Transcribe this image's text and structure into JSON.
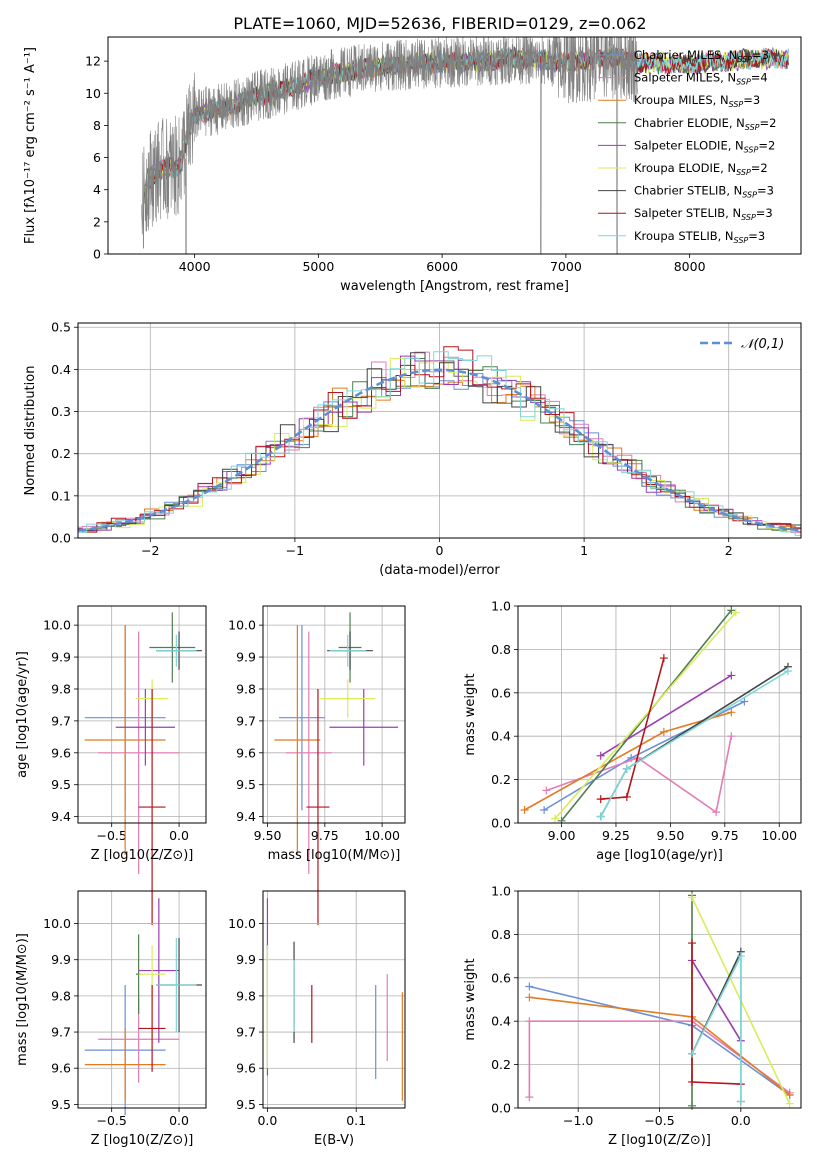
{
  "figure": {
    "title": "PLATE=1060, MJD=52636, FIBERID=0129, z=0.062",
    "colors": {
      "Chabrier MILES": "#6a8fd8",
      "Salpeter MILES": "#e27db6",
      "Kroupa MILES": "#e37b22",
      "Chabrier ELODIE": "#4f7f4f",
      "Salpeter ELODIE": "#9b3db4",
      "Kroupa ELODIE": "#d8ec5c",
      "Chabrier STELIB": "#444444",
      "Salpeter STELIB": "#b5141c",
      "Kroupa STELIB": "#7fd7d9",
      "data": "#808080",
      "normal_curve": "#5b8fd6",
      "grid": "#b0b0b0"
    }
  },
  "chart_data": [
    {
      "id": "spectrum",
      "type": "line",
      "xlabel": "wavelength [Angstrom, rest frame]",
      "ylabel": "Flux [fλ10⁻¹⁷ erg cm⁻² s⁻¹ A⁻¹]",
      "xlim": [
        3300,
        8900
      ],
      "ylim": [
        0,
        13.5
      ],
      "xticks": [
        4000,
        5000,
        6000,
        7000,
        8000
      ],
      "yticks": [
        0,
        2,
        4,
        6,
        8,
        10,
        12
      ],
      "grid": false,
      "legend_position": "right",
      "legend": [
        {
          "label": "Chabrier MILES, N",
          "sub": "SSP",
          "count": "=3"
        },
        {
          "label": "Salpeter MILES, N",
          "sub": "SSP",
          "count": "=4"
        },
        {
          "label": "Kroupa MILES, N",
          "sub": "SSP",
          "count": "=3"
        },
        {
          "label": "Chabrier ELODIE, N",
          "sub": "SSP",
          "count": "=2"
        },
        {
          "label": "Salpeter ELODIE, N",
          "sub": "SSP",
          "count": "=2"
        },
        {
          "label": "Kroupa ELODIE, N",
          "sub": "SSP",
          "count": "=2"
        },
        {
          "label": "Chabrier STELIB, N",
          "sub": "SSP",
          "count": "=3"
        },
        {
          "label": "Salpeter STELIB, N",
          "sub": "SSP",
          "count": "=3"
        },
        {
          "label": "Kroupa STELIB, N",
          "sub": "SSP",
          "count": "=3"
        }
      ],
      "continuum_points": [
        [
          3580,
          3.2
        ],
        [
          3620,
          4.6
        ],
        [
          3700,
          5.2
        ],
        [
          3800,
          5.4
        ],
        [
          3880,
          5.4
        ],
        [
          3920,
          6.8
        ],
        [
          3960,
          7.6
        ],
        [
          4000,
          8.6
        ],
        [
          4100,
          8.9
        ],
        [
          4200,
          9.0
        ],
        [
          4300,
          9.2
        ],
        [
          4500,
          9.8
        ],
        [
          4700,
          10.2
        ],
        [
          4860,
          10.6
        ],
        [
          5000,
          11.0
        ],
        [
          5200,
          11.3
        ],
        [
          5500,
          11.7
        ],
        [
          5800,
          11.8
        ],
        [
          6000,
          11.9
        ],
        [
          6300,
          12.0
        ],
        [
          6563,
          12.2
        ],
        [
          7000,
          11.9
        ],
        [
          7400,
          12.2
        ],
        [
          7600,
          11.9
        ],
        [
          8000,
          11.8
        ],
        [
          8400,
          12.1
        ],
        [
          8800,
          12.2
        ]
      ],
      "model_extent": [
        3590,
        8800
      ],
      "data_extent": [
        3570,
        7580
      ]
    },
    {
      "id": "residuals",
      "type": "line",
      "xlabel": "(data-model)/error",
      "ylabel": "Normed distribution",
      "xlim": [
        -2.5,
        2.5
      ],
      "ylim": [
        0,
        0.51
      ],
      "xticks": [
        -2,
        -1,
        0,
        1,
        2
      ],
      "yticks": [
        0.0,
        0.1,
        0.2,
        0.3,
        0.4,
        0.5
      ],
      "grid": true,
      "legend_position": "top-right",
      "legend": "𝒩(0,1)",
      "bin_width": 0.1
    },
    {
      "id": "age-vs-Z",
      "type": "scatter",
      "xlabel": "Z [log10(Z/Z⊙)]",
      "ylabel": "age  [log10(age/yr)]",
      "xlim": [
        -0.75,
        0.2
      ],
      "ylim": [
        9.38,
        10.06
      ],
      "xticks": [
        -0.5,
        0.0
      ],
      "yticks": [
        9.4,
        9.5,
        9.6,
        9.7,
        9.8,
        9.9,
        10.0
      ],
      "grid": true,
      "errorbars": [
        {
          "series": "Chabrier MILES",
          "x": -0.4,
          "xerr": 0.3,
          "y": 9.71,
          "yerr": 0.29
        },
        {
          "series": "Salpeter MILES",
          "x": -0.3,
          "xerr": 0.3,
          "y": 9.6,
          "yerr": 0.38
        },
        {
          "series": "Kroupa MILES",
          "x": -0.4,
          "xerr": 0.3,
          "y": 9.64,
          "yerr": 0.36
        },
        {
          "series": "Chabrier ELODIE",
          "x": -0.05,
          "xerr": 0.17,
          "y": 9.93,
          "yerr": 0.11
        },
        {
          "series": "Salpeter ELODIE",
          "x": -0.25,
          "xerr": 0.22,
          "y": 9.68,
          "yerr": 0.12
        },
        {
          "series": "Kroupa ELODIE",
          "x": -0.2,
          "xerr": 0.12,
          "y": 9.77,
          "yerr": 0.06
        },
        {
          "series": "Chabrier STELIB",
          "x": 0.0,
          "xerr": 0.17,
          "y": 9.92,
          "yerr": 0.06
        },
        {
          "series": "Salpeter STELIB",
          "x": -0.2,
          "xerr": 0.1,
          "y": 9.43,
          "yerr": 0.37
        },
        {
          "series": "Kroupa STELIB",
          "x": -0.02,
          "xerr": 0.15,
          "y": 9.92,
          "yerr": 0.05
        }
      ]
    },
    {
      "id": "age-vs-mass",
      "type": "scatter",
      "xlabel": "mass [log10(M/M⊙)]",
      "ylabel": "",
      "xlim": [
        9.48,
        10.1
      ],
      "ylim": [
        9.38,
        10.06
      ],
      "xticks": [
        9.5,
        9.75,
        10.0
      ],
      "xticklabels": [
        "9.50",
        "9.75",
        "10.00"
      ],
      "yticks": [
        9.4,
        9.5,
        9.6,
        9.7,
        9.8,
        9.9,
        10.0
      ],
      "grid": true,
      "errorbars": [
        {
          "series": "Chabrier MILES",
          "x": 9.65,
          "xerr": 0.1,
          "y": 9.71,
          "yerr": 0.29
        },
        {
          "series": "Salpeter MILES",
          "x": 9.68,
          "xerr": 0.1,
          "y": 9.6,
          "yerr": 0.38
        },
        {
          "series": "Kroupa MILES",
          "x": 9.63,
          "xerr": 0.1,
          "y": 9.64,
          "yerr": 0.36
        },
        {
          "series": "Chabrier ELODIE",
          "x": 9.86,
          "xerr": 0.05,
          "y": 9.93,
          "yerr": 0.11
        },
        {
          "series": "Salpeter ELODIE",
          "x": 9.92,
          "xerr": 0.15,
          "y": 9.68,
          "yerr": 0.12
        },
        {
          "series": "Kroupa ELODIE",
          "x": 9.85,
          "xerr": 0.12,
          "y": 9.77,
          "yerr": 0.06
        },
        {
          "series": "Chabrier STELIB",
          "x": 9.86,
          "xerr": 0.1,
          "y": 9.92,
          "yerr": 0.06
        },
        {
          "series": "Salpeter STELIB",
          "x": 9.72,
          "xerr": 0.05,
          "y": 9.43,
          "yerr": 0.37
        },
        {
          "series": "Kroupa STELIB",
          "x": 9.85,
          "xerr": 0.08,
          "y": 9.92,
          "yerr": 0.05
        }
      ]
    },
    {
      "id": "weight-vs-age",
      "type": "line",
      "xlabel": "age  [log10(age/yr)]",
      "ylabel": "mass weight",
      "xlim": [
        8.8,
        10.1
      ],
      "ylim": [
        0,
        1
      ],
      "xticks": [
        9.0,
        9.25,
        9.5,
        9.75,
        10.0
      ],
      "xticklabels": [
        "9.00",
        "9.25",
        "9.50",
        "9.75",
        "10.00"
      ],
      "yticks": [
        0.0,
        0.2,
        0.4,
        0.6,
        0.8,
        1.0
      ],
      "grid": true,
      "series": [
        {
          "name": "Chabrier MILES",
          "x": [
            8.92,
            9.32,
            9.84
          ],
          "y": [
            0.06,
            0.3,
            0.56
          ]
        },
        {
          "name": "Salpeter MILES",
          "x": [
            8.93,
            9.35,
            9.71,
            9.78
          ],
          "y": [
            0.15,
            0.3,
            0.05,
            0.4
          ]
        },
        {
          "name": "Kroupa MILES",
          "x": [
            8.83,
            9.47,
            9.78
          ],
          "y": [
            0.06,
            0.42,
            0.51
          ]
        },
        {
          "name": "Chabrier ELODIE",
          "x": [
            9.0,
            9.78
          ],
          "y": [
            0.01,
            0.98
          ]
        },
        {
          "name": "Salpeter ELODIE",
          "x": [
            9.18,
            9.78
          ],
          "y": [
            0.31,
            0.68
          ]
        },
        {
          "name": "Kroupa ELODIE",
          "x": [
            8.97,
            9.8
          ],
          "y": [
            0.02,
            0.97
          ]
        },
        {
          "name": "Chabrier STELIB",
          "x": [
            9.18,
            9.3,
            10.04
          ],
          "y": [
            0.03,
            0.25,
            0.72
          ]
        },
        {
          "name": "Salpeter STELIB",
          "x": [
            9.18,
            9.3,
            9.47
          ],
          "y": [
            0.11,
            0.12,
            0.76
          ]
        },
        {
          "name": "Kroupa STELIB",
          "x": [
            9.18,
            9.3,
            10.04
          ],
          "y": [
            0.03,
            0.25,
            0.7
          ]
        }
      ]
    },
    {
      "id": "mass-vs-Z",
      "type": "scatter",
      "xlabel": "Z [log10(Z/Z⊙)]",
      "ylabel": "mass [log10(M/M⊙)]",
      "xlim": [
        -0.75,
        0.2
      ],
      "ylim": [
        9.49,
        10.09
      ],
      "xticks": [
        -0.5,
        0.0
      ],
      "yticks": [
        9.5,
        9.6,
        9.7,
        9.8,
        9.9,
        10.0
      ],
      "grid": true,
      "errorbars": [
        {
          "series": "Chabrier MILES",
          "x": -0.4,
          "xerr": 0.3,
          "y": 9.65,
          "yerr": 0.18
        },
        {
          "series": "Salpeter MILES",
          "x": -0.3,
          "xerr": 0.3,
          "y": 9.68,
          "yerr": 0.12
        },
        {
          "series": "Kroupa MILES",
          "x": -0.4,
          "xerr": 0.3,
          "y": 9.61,
          "yerr": 0.1
        },
        {
          "series": "Chabrier ELODIE",
          "x": -0.3,
          "xerr": 0.02,
          "y": 9.86,
          "yerr": 0.11
        },
        {
          "series": "Salpeter ELODIE",
          "x": -0.15,
          "xerr": 0.15,
          "y": 9.87,
          "yerr": 0.2
        },
        {
          "series": "Kroupa ELODIE",
          "x": -0.2,
          "xerr": 0.1,
          "y": 9.86,
          "yerr": 0.08
        },
        {
          "series": "Chabrier STELIB",
          "x": 0.0,
          "xerr": 0.17,
          "y": 9.83,
          "yerr": 0.13
        },
        {
          "series": "Salpeter STELIB",
          "x": -0.2,
          "xerr": 0.1,
          "y": 9.71,
          "yerr": 0.12
        },
        {
          "series": "Kroupa STELIB",
          "x": -0.02,
          "xerr": 0.15,
          "y": 9.83,
          "yerr": 0.13
        }
      ]
    },
    {
      "id": "mass-vs-EBV",
      "type": "scatter",
      "xlabel": "E(B-V)",
      "ylabel": "",
      "xlim": [
        -0.005,
        0.155
      ],
      "ylim": [
        9.49,
        10.09
      ],
      "xticks": [
        0.0,
        0.1
      ],
      "xticklabels": [
        "0.0",
        "0.1"
      ],
      "yticks": [
        9.5,
        9.6,
        9.7,
        9.8,
        9.9,
        10.0
      ],
      "grid": true,
      "errorbars": [
        {
          "series": "Chabrier MILES",
          "x": 0.122,
          "y": 9.7,
          "yerr": 0.13
        },
        {
          "series": "Salpeter MILES",
          "x": 0.135,
          "y": 9.74,
          "yerr": 0.12
        },
        {
          "series": "Kroupa MILES",
          "x": 0.152,
          "y": 9.66,
          "yerr": 0.15
        },
        {
          "series": "Chabrier ELODIE",
          "x": 0.0,
          "y": 9.76,
          "yerr": 0.18
        },
        {
          "series": "Salpeter ELODIE",
          "x": 0.0,
          "y": 10.0,
          "yerr": 0.07
        },
        {
          "series": "Kroupa ELODIE",
          "x": 0.0,
          "y": 9.77,
          "yerr": 0.17
        },
        {
          "series": "Chabrier STELIB",
          "x": 0.03,
          "y": 9.81,
          "yerr": 0.14
        },
        {
          "series": "Salpeter STELIB",
          "x": 0.05,
          "y": 9.75,
          "yerr": 0.08
        },
        {
          "series": "Kroupa STELIB",
          "x": 0.03,
          "y": 9.8,
          "yerr": 0.1
        }
      ]
    },
    {
      "id": "weight-vs-Z",
      "type": "line",
      "xlabel": "Z [log10(Z/Z⊙)]",
      "ylabel": "mass weight",
      "xlim": [
        -1.37,
        0.37
      ],
      "ylim": [
        0,
        1
      ],
      "xticks": [
        -1.0,
        -0.5,
        0.0
      ],
      "xticklabels": [
        "−1.0",
        "−0.5",
        "0.0"
      ],
      "yticks": [
        0.0,
        0.2,
        0.4,
        0.6,
        0.8,
        1.0
      ],
      "grid": true,
      "series": [
        {
          "name": "Chabrier MILES",
          "x": [
            -1.3,
            -0.3,
            0.3
          ],
          "y": [
            0.56,
            0.38,
            0.06
          ]
        },
        {
          "name": "Salpeter MILES",
          "x": [
            -1.3,
            -1.3,
            -0.3,
            0.3
          ],
          "y": [
            0.05,
            0.4,
            0.4,
            0.07
          ]
        },
        {
          "name": "Kroupa MILES",
          "x": [
            -1.3,
            -0.3,
            0.3
          ],
          "y": [
            0.51,
            0.42,
            0.06
          ]
        },
        {
          "name": "Chabrier ELODIE",
          "x": [
            -0.3,
            -0.3
          ],
          "y": [
            0.01,
            0.98
          ]
        },
        {
          "name": "Salpeter ELODIE",
          "x": [
            -0.3,
            0.0
          ],
          "y": [
            0.68,
            0.31
          ]
        },
        {
          "name": "Kroupa ELODIE",
          "x": [
            -0.3,
            0.3
          ],
          "y": [
            0.97,
            0.02
          ]
        },
        {
          "name": "Chabrier STELIB",
          "x": [
            -0.3,
            0.0,
            0.0
          ],
          "y": [
            0.25,
            0.72,
            0.03
          ]
        },
        {
          "name": "Salpeter STELIB",
          "x": [
            -0.3,
            -0.3,
            0.0
          ],
          "y": [
            0.76,
            0.12,
            0.11
          ]
        },
        {
          "name": "Kroupa STELIB",
          "x": [
            -0.3,
            0.0,
            0.0
          ],
          "y": [
            0.25,
            0.7,
            0.03
          ]
        }
      ]
    }
  ]
}
